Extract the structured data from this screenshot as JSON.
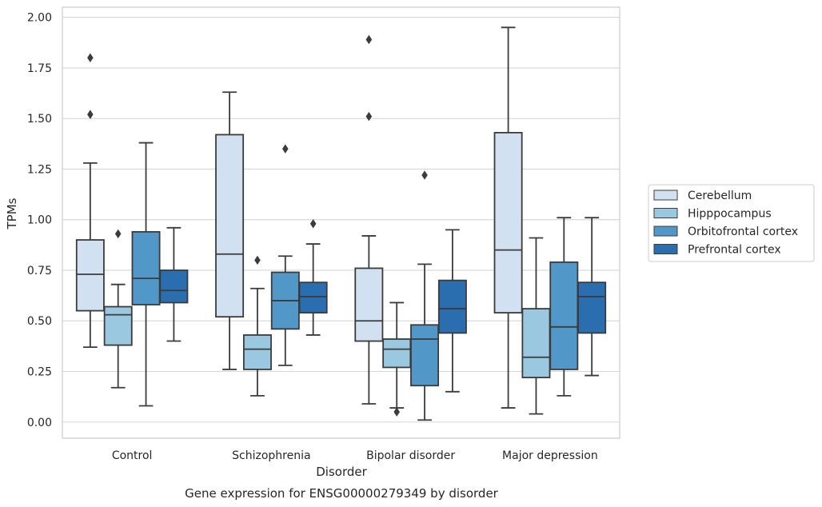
{
  "chart_data": {
    "type": "box",
    "title": "Gene expression for ENSG00000279349 by disorder",
    "xlabel": "Disorder",
    "ylabel": "TPMs",
    "ylim": [
      -0.08,
      2.05
    ],
    "yticks": [
      "0.00",
      "0.25",
      "0.50",
      "0.75",
      "1.00",
      "1.25",
      "1.50",
      "1.75",
      "2.00"
    ],
    "ytick_values": [
      0,
      0.25,
      0.5,
      0.75,
      1.0,
      1.25,
      1.5,
      1.75,
      2.0
    ],
    "grid": "horizontal",
    "legend_position": "right",
    "categories": [
      "Control",
      "Schizophrenia",
      "Bipolar disorder",
      "Major depression"
    ],
    "series": [
      {
        "name": "Cerebellum",
        "color": "#d1e1f1",
        "boxes": [
          {
            "whisker_low": 0.37,
            "q1": 0.55,
            "median": 0.73,
            "q3": 0.9,
            "whisker_high": 1.28,
            "outliers": [
              1.52,
              1.8
            ]
          },
          {
            "whisker_low": 0.26,
            "q1": 0.52,
            "median": 0.83,
            "q3": 1.42,
            "whisker_high": 1.63,
            "outliers": []
          },
          {
            "whisker_low": 0.09,
            "q1": 0.4,
            "median": 0.5,
            "q3": 0.76,
            "whisker_high": 0.92,
            "outliers": [
              1.51,
              1.89
            ]
          },
          {
            "whisker_low": 0.07,
            "q1": 0.54,
            "median": 0.85,
            "q3": 1.43,
            "whisker_high": 1.95,
            "outliers": []
          }
        ]
      },
      {
        "name": "Hipppocampus",
        "color": "#9ac8e0",
        "boxes": [
          {
            "whisker_low": 0.17,
            "q1": 0.38,
            "median": 0.53,
            "q3": 0.57,
            "whisker_high": 0.68,
            "outliers": [
              0.93
            ]
          },
          {
            "whisker_low": 0.13,
            "q1": 0.26,
            "median": 0.36,
            "q3": 0.43,
            "whisker_high": 0.66,
            "outliers": [
              0.8
            ]
          },
          {
            "whisker_low": 0.07,
            "q1": 0.27,
            "median": 0.36,
            "q3": 0.41,
            "whisker_high": 0.59,
            "outliers": [
              0.05
            ]
          },
          {
            "whisker_low": 0.04,
            "q1": 0.22,
            "median": 0.32,
            "q3": 0.56,
            "whisker_high": 0.91,
            "outliers": []
          }
        ]
      },
      {
        "name": "Orbitofrontal cortex",
        "color": "#5198c8",
        "boxes": [
          {
            "whisker_low": 0.08,
            "q1": 0.58,
            "median": 0.71,
            "q3": 0.94,
            "whisker_high": 1.38,
            "outliers": []
          },
          {
            "whisker_low": 0.28,
            "q1": 0.46,
            "median": 0.6,
            "q3": 0.74,
            "whisker_high": 0.82,
            "outliers": [
              1.35
            ]
          },
          {
            "whisker_low": 0.01,
            "q1": 0.18,
            "median": 0.41,
            "q3": 0.48,
            "whisker_high": 0.78,
            "outliers": [
              1.22
            ]
          },
          {
            "whisker_low": 0.13,
            "q1": 0.26,
            "median": 0.47,
            "q3": 0.79,
            "whisker_high": 1.01,
            "outliers": []
          }
        ]
      },
      {
        "name": "Prefrontal cortex",
        "color": "#2a6eb0",
        "boxes": [
          {
            "whisker_low": 0.4,
            "q1": 0.59,
            "median": 0.65,
            "q3": 0.75,
            "whisker_high": 0.96,
            "outliers": []
          },
          {
            "whisker_low": 0.43,
            "q1": 0.54,
            "median": 0.62,
            "q3": 0.69,
            "whisker_high": 0.88,
            "outliers": [
              0.98
            ]
          },
          {
            "whisker_low": 0.15,
            "q1": 0.44,
            "median": 0.56,
            "q3": 0.7,
            "whisker_high": 0.95,
            "outliers": []
          },
          {
            "whisker_low": 0.23,
            "q1": 0.44,
            "median": 0.62,
            "q3": 0.69,
            "whisker_high": 1.01,
            "outliers": []
          }
        ]
      }
    ]
  }
}
